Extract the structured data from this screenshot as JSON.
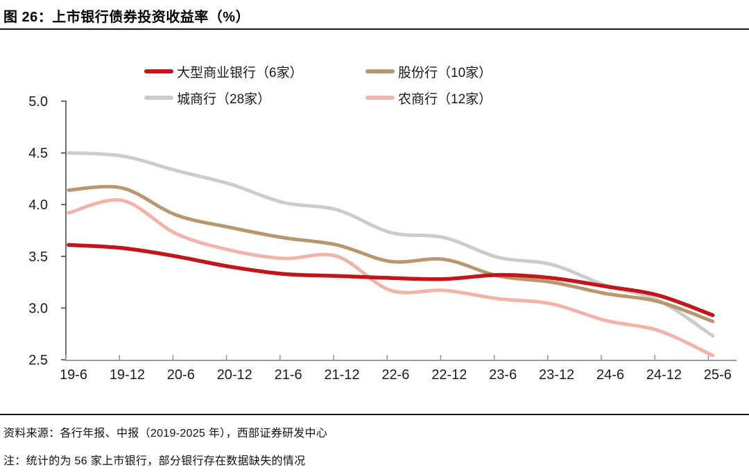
{
  "page": {
    "title": "图 26：上市银行债券投资收益率（%）",
    "source_note": "资料来源：各行年报、中报（2019-2025 年），西部证券研发中心",
    "footnote": "注：统计的为 56 家上市银行，部分银行存在数据缺失的情况"
  },
  "chart_data": {
    "type": "line",
    "title": "上市银行债券投资收益率（%）",
    "categories": [
      "19-6",
      "19-12",
      "20-6",
      "20-12",
      "21-6",
      "21-12",
      "22-6",
      "22-12",
      "23-6",
      "23-12",
      "24-6",
      "24-12",
      "25-6"
    ],
    "series": [
      {
        "name": "大型商业银行（6家）",
        "color": "#c2161b",
        "width": 5.5,
        "values": [
          3.61,
          3.58,
          3.5,
          3.4,
          3.33,
          3.31,
          3.29,
          3.28,
          3.32,
          3.29,
          3.21,
          3.12,
          2.93
        ]
      },
      {
        "name": "股份行（10家）",
        "color": "#b7976e",
        "width": 5,
        "values": [
          4.14,
          4.16,
          3.9,
          3.78,
          3.68,
          3.61,
          3.45,
          3.47,
          3.31,
          3.25,
          3.14,
          3.06,
          2.87
        ]
      },
      {
        "name": "城商行（28家）",
        "color": "#cccccc",
        "width": 5,
        "values": [
          4.5,
          4.47,
          4.33,
          4.2,
          4.02,
          3.95,
          3.73,
          3.68,
          3.49,
          3.42,
          3.22,
          3.07,
          2.73
        ]
      },
      {
        "name": "农商行（12家）",
        "color": "#f2b3a8",
        "width": 5,
        "values": [
          3.92,
          4.04,
          3.72,
          3.56,
          3.48,
          3.5,
          3.17,
          3.17,
          3.09,
          3.04,
          2.88,
          2.78,
          2.54
        ]
      }
    ],
    "y_axis": {
      "min": 2.5,
      "max": 5.0,
      "step": 0.5,
      "tick_labels": [
        "5.0",
        "4.5",
        "4.0",
        "3.5",
        "3.0",
        "2.5"
      ]
    },
    "x_axis": {
      "tick_labels": [
        "19-6",
        "19-12",
        "20-6",
        "20-12",
        "21-6",
        "21-12",
        "22-6",
        "22-12",
        "23-6",
        "23-12",
        "24-6",
        "24-12",
        "25-6"
      ]
    },
    "legend_position": "top",
    "grid": "off"
  }
}
